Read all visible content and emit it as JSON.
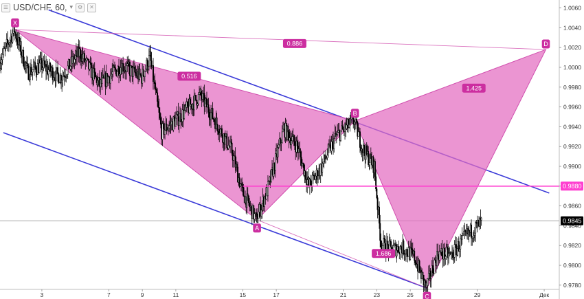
{
  "header": {
    "symbol": "USD/CHF, 60,",
    "menu_icon": "hamburger-icon",
    "dropdown_icon": "chevron-down-icon",
    "settings_icon": "settings-square-icon",
    "close_icon": "close-square-icon"
  },
  "colors": {
    "pattern_fill": "#e36cc0",
    "pattern_edge": "#d14fae",
    "channel": "#3a3ad8",
    "level_line": "#ff3fd0",
    "label_bg": "#cc2ea0",
    "candle": "#000000",
    "price_tag_bg": "#000000"
  },
  "chart_data": {
    "type": "candlestick",
    "symbol": "USD/CHF",
    "timeframe": "60",
    "ylim": [
      0.9766,
      1.0068
    ],
    "y_ticks": [
      1.006,
      1.004,
      1.002,
      1.0,
      0.998,
      0.996,
      0.994,
      0.992,
      0.99,
      0.988,
      0.986,
      0.984,
      0.982,
      0.98,
      0.978
    ],
    "y_tick_labels": [
      "1.0060",
      "1.0040",
      "1.0020",
      "1.0000",
      "0.9980",
      "0.9960",
      "0.9940",
      "0.9920",
      "0.9900",
      "0.9880",
      "0.9860",
      "0.9840",
      "0.9820",
      "0.9800",
      "0.9780"
    ],
    "x_ticks": [
      3,
      7,
      9,
      11,
      15,
      17,
      21,
      23,
      25,
      29,
      33
    ],
    "x_tick_labels": [
      "3",
      "7",
      "9",
      "11",
      "15",
      "17",
      "21",
      "23",
      "25",
      "29",
      "Дек"
    ],
    "xlim": [
      0.5,
      33.9
    ],
    "last_price": 0.9845,
    "last_price_label": "0.9845",
    "level": 0.988,
    "level_label": "0.9880",
    "harmonic_pattern": {
      "points": [
        {
          "name": "X",
          "x": 1.4,
          "price": 1.0038
        },
        {
          "name": "A",
          "x": 15.85,
          "price": 0.9846
        },
        {
          "name": "B",
          "x": 21.7,
          "price": 0.9946
        },
        {
          "name": "C",
          "x": 26.0,
          "price": 0.9777
        },
        {
          "name": "D",
          "x": 33.1,
          "price": 1.0018
        }
      ],
      "ratios": [
        {
          "label": "0.516",
          "x": 11.8,
          "price": 0.9991
        },
        {
          "label": "0.886",
          "x": 18.1,
          "price": 1.0024
        },
        {
          "label": "1.425",
          "x": 28.8,
          "price": 0.9979
        },
        {
          "label": "1.686",
          "x": 23.4,
          "price": 0.9812
        }
      ]
    },
    "channel": {
      "upper": [
        {
          "x": 3.4,
          "price": 1.0058
        },
        {
          "x": 33.3,
          "price": 0.9873
        }
      ],
      "lower": [
        {
          "x": 0.7,
          "price": 0.9934
        },
        {
          "x": 26.0,
          "price": 0.9777
        }
      ]
    },
    "anchors": [
      {
        "x": 0.5,
        "price": 1.0005
      },
      {
        "x": 1.4,
        "price": 1.0038
      },
      {
        "x": 2.2,
        "price": 0.9995
      },
      {
        "x": 3.0,
        "price": 1.0002
      },
      {
        "x": 4.2,
        "price": 0.999
      },
      {
        "x": 5.3,
        "price": 1.0015
      },
      {
        "x": 6.5,
        "price": 0.9982
      },
      {
        "x": 7.8,
        "price": 1.0002
      },
      {
        "x": 9.0,
        "price": 0.999
      },
      {
        "x": 9.5,
        "price": 1.001
      },
      {
        "x": 10.2,
        "price": 0.9935
      },
      {
        "x": 11.3,
        "price": 0.995
      },
      {
        "x": 12.5,
        "price": 0.9972
      },
      {
        "x": 13.1,
        "price": 0.9955
      },
      {
        "x": 14.4,
        "price": 0.9915
      },
      {
        "x": 15.0,
        "price": 0.9875
      },
      {
        "x": 15.85,
        "price": 0.9846
      },
      {
        "x": 16.6,
        "price": 0.988
      },
      {
        "x": 17.5,
        "price": 0.9938
      },
      {
        "x": 18.3,
        "price": 0.992
      },
      {
        "x": 19.0,
        "price": 0.988
      },
      {
        "x": 19.7,
        "price": 0.9898
      },
      {
        "x": 20.6,
        "price": 0.993
      },
      {
        "x": 21.7,
        "price": 0.9946
      },
      {
        "x": 22.2,
        "price": 0.9918
      },
      {
        "x": 22.9,
        "price": 0.99
      },
      {
        "x": 23.3,
        "price": 0.9822
      },
      {
        "x": 23.9,
        "price": 0.9816
      },
      {
        "x": 24.6,
        "price": 0.9818
      },
      {
        "x": 25.3,
        "price": 0.9808
      },
      {
        "x": 26.0,
        "price": 0.9777
      },
      {
        "x": 26.7,
        "price": 0.9812
      },
      {
        "x": 27.5,
        "price": 0.981
      },
      {
        "x": 28.4,
        "price": 0.983
      },
      {
        "x": 29.3,
        "price": 0.9843
      }
    ]
  }
}
